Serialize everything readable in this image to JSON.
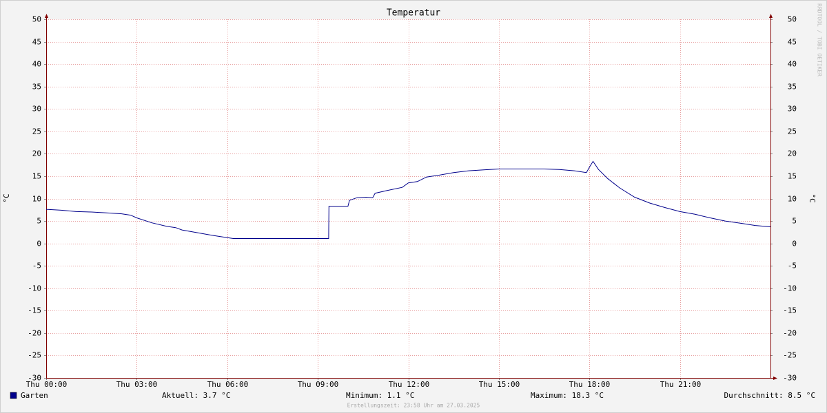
{
  "chart_data": {
    "type": "line",
    "title": "Temperatur",
    "ylabel": "°C",
    "y2label": "°C",
    "watermark": "RRDTOOL / TOBI OETIKER",
    "x": [
      0,
      0.5,
      1,
      1.5,
      2,
      2.5,
      2.8,
      3,
      3.5,
      4,
      4.3,
      4.5,
      5,
      5.5,
      6,
      6.2,
      9.36,
      9.37,
      10.0,
      10.05,
      10.3,
      10.6,
      10.82,
      10.9,
      11.3,
      11.8,
      12.0,
      12.3,
      12.6,
      13,
      13.5,
      14,
      14.5,
      15,
      15.5,
      16,
      16.5,
      17,
      17.5,
      17.9,
      18.0,
      18.12,
      18.3,
      18.6,
      19,
      19.5,
      20,
      20.5,
      21,
      21.5,
      22,
      22.5,
      23,
      23.5,
      24
    ],
    "series": [
      {
        "name": "Garten",
        "color": "#00008b",
        "values": [
          7.6,
          7.4,
          7.1,
          7.0,
          6.8,
          6.6,
          6.3,
          5.7,
          4.6,
          3.8,
          3.5,
          3.0,
          2.4,
          1.8,
          1.3,
          1.1,
          1.1,
          8.3,
          8.3,
          9.6,
          10.2,
          10.3,
          10.2,
          11.2,
          11.8,
          12.5,
          13.5,
          13.8,
          14.8,
          15.2,
          15.8,
          16.2,
          16.4,
          16.6,
          16.6,
          16.6,
          16.6,
          16.5,
          16.2,
          15.8,
          17.0,
          18.3,
          16.5,
          14.5,
          12.4,
          10.3,
          9.0,
          8.0,
          7.1,
          6.5,
          5.7,
          5.0,
          4.5,
          4.0,
          3.7
        ]
      }
    ],
    "xlim": [
      0,
      24
    ],
    "xticks": [
      {
        "value": 0,
        "label": "Thu 00:00"
      },
      {
        "value": 3,
        "label": "Thu 03:00"
      },
      {
        "value": 6,
        "label": "Thu 06:00"
      },
      {
        "value": 9,
        "label": "Thu 09:00"
      },
      {
        "value": 12,
        "label": "Thu 12:00"
      },
      {
        "value": 15,
        "label": "Thu 15:00"
      },
      {
        "value": 18,
        "label": "Thu 18:00"
      },
      {
        "value": 21,
        "label": "Thu 21:00"
      }
    ],
    "ylim": [
      -30,
      50
    ],
    "yticks": [
      -30,
      -25,
      -20,
      -15,
      -10,
      -5,
      0,
      5,
      10,
      15,
      20,
      25,
      30,
      35,
      40,
      45,
      50
    ],
    "y2lim": [
      -30,
      50
    ],
    "y2ticks": [
      -30,
      -25,
      -20,
      -15,
      -10,
      -5,
      0,
      5,
      10,
      15,
      20,
      25,
      30,
      35,
      40,
      45,
      50
    ],
    "grid": true,
    "stats": [
      "Aktuell: 3.7 °C",
      "Minimum: 1.1 °C",
      "Maximum: 18.3 °C",
      "Durchschnitt: 8.5 °C"
    ],
    "footer": "Erstellungszeit: 23:58 Uhr am 27.03.2025"
  }
}
